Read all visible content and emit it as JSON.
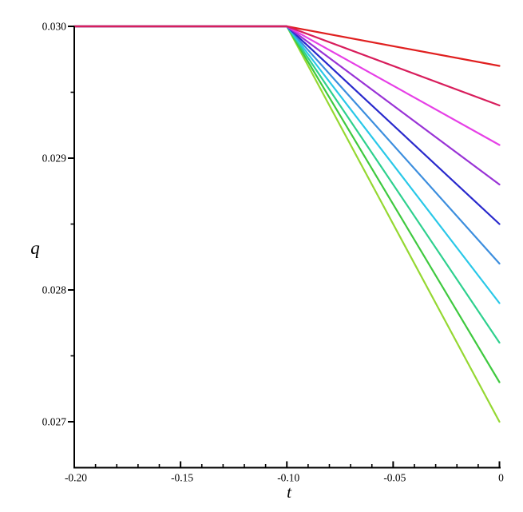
{
  "figure": {
    "background": "#ffffff",
    "axis_color": "#000000"
  },
  "chart_data": {
    "type": "line",
    "title": "",
    "xlabel": "t",
    "ylabel": "q",
    "xlim": [
      -0.2,
      0
    ],
    "ylim": [
      0.0267,
      0.0301
    ],
    "grid": false,
    "legend": "none",
    "x_ticks": {
      "major": [
        -0.2,
        -0.15,
        -0.1,
        -0.05,
        0
      ],
      "labels": [
        "-0.20",
        "-0.15",
        "-0.10",
        "-0.05",
        "0"
      ],
      "minor_step": 0.01
    },
    "y_ticks": {
      "major": [
        0.03,
        0.029,
        0.028,
        0.027
      ],
      "labels": [
        "0.030",
        "0.029",
        "0.028",
        "0.027"
      ],
      "minor": [
        0.0295,
        0.0285,
        0.0275
      ]
    },
    "vertex": {
      "t": -0.1,
      "q": 0.03
    },
    "series": [
      {
        "name": "red",
        "color": "#e02020",
        "points": [
          [
            -0.2,
            0.03
          ],
          [
            -0.1,
            0.03
          ],
          [
            0,
            0.0297
          ]
        ]
      },
      {
        "name": "crimson",
        "color": "#d81e5c",
        "points": [
          [
            -0.2,
            0.03
          ],
          [
            -0.1,
            0.03
          ],
          [
            0,
            0.0294
          ]
        ]
      },
      {
        "name": "magenta",
        "color": "#e640e6",
        "points": [
          [
            -0.2,
            0.03
          ],
          [
            -0.1,
            0.03
          ],
          [
            0,
            0.0291
          ]
        ]
      },
      {
        "name": "purple",
        "color": "#9933d6",
        "points": [
          [
            -0.2,
            0.03
          ],
          [
            -0.1,
            0.03
          ],
          [
            0,
            0.0288
          ]
        ]
      },
      {
        "name": "blue",
        "color": "#2929cc",
        "points": [
          [
            -0.2,
            0.03
          ],
          [
            -0.1,
            0.03
          ],
          [
            0,
            0.0285
          ]
        ]
      },
      {
        "name": "azure",
        "color": "#3c8ede",
        "points": [
          [
            -0.2,
            0.03
          ],
          [
            -0.1,
            0.03
          ],
          [
            0,
            0.0282
          ]
        ]
      },
      {
        "name": "cyan",
        "color": "#29c8e8",
        "points": [
          [
            -0.2,
            0.03
          ],
          [
            -0.1,
            0.03
          ],
          [
            0,
            0.0279
          ]
        ]
      },
      {
        "name": "spring-green",
        "color": "#2ed08e",
        "points": [
          [
            -0.2,
            0.03
          ],
          [
            -0.1,
            0.03
          ],
          [
            0,
            0.0276
          ]
        ]
      },
      {
        "name": "green",
        "color": "#3fc93f",
        "points": [
          [
            -0.2,
            0.03
          ],
          [
            -0.1,
            0.03
          ],
          [
            0,
            0.0273
          ]
        ]
      },
      {
        "name": "yellow-green",
        "color": "#95d832",
        "points": [
          [
            -0.2,
            0.03
          ],
          [
            -0.1,
            0.03
          ],
          [
            0,
            0.027
          ]
        ]
      }
    ],
    "draw_order": [
      9,
      8,
      7,
      6,
      5,
      4,
      3,
      2,
      0,
      1
    ]
  }
}
